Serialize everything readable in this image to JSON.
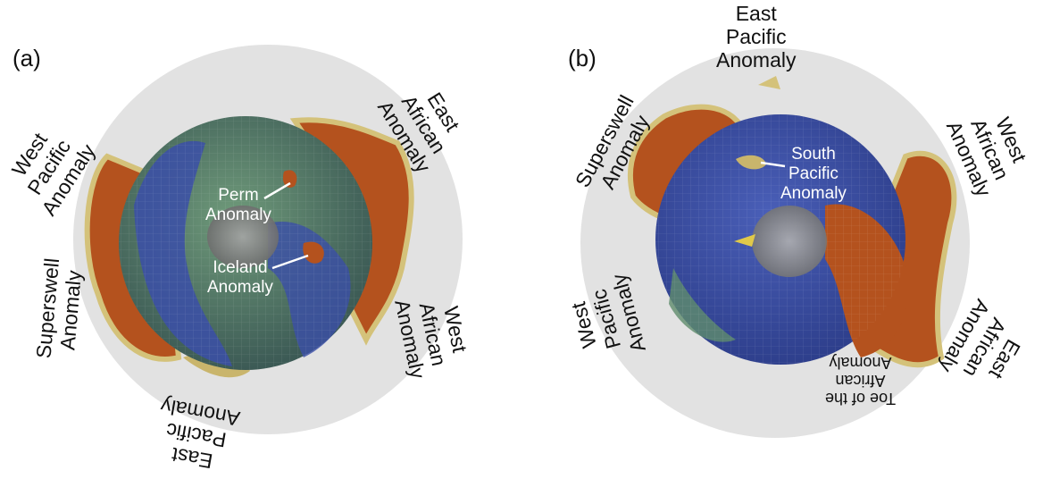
{
  "panels": [
    {
      "tag": "(a)",
      "outer_labels": [
        {
          "lines": [
            "East",
            "African",
            "Anomaly"
          ]
        },
        {
          "lines": [
            "West",
            "Pacific",
            "Anomaly"
          ]
        },
        {
          "lines": [
            "Superswell",
            "Anomaly"
          ]
        },
        {
          "lines": [
            "West",
            "African",
            "Anomaly"
          ]
        },
        {
          "lines": [
            "East",
            "Pacific",
            "Anomaly"
          ]
        }
      ],
      "inner_labels": [
        {
          "lines": [
            "Perm",
            "Anomaly"
          ]
        },
        {
          "lines": [
            "Iceland",
            "Anomaly"
          ]
        }
      ]
    },
    {
      "tag": "(b)",
      "outer_labels": [
        {
          "lines": [
            "East",
            "Pacific",
            "Anomaly"
          ]
        },
        {
          "lines": [
            "Superswell",
            "Anomaly"
          ]
        },
        {
          "lines": [
            "West",
            "African",
            "Anomaly"
          ]
        },
        {
          "lines": [
            "West",
            "Pacific",
            "Anomaly"
          ]
        },
        {
          "lines": [
            "East",
            "African",
            "Anomaly"
          ]
        },
        {
          "lines": [
            "Toe of the",
            "African",
            "Anomaly"
          ]
        }
      ],
      "inner_labels": [
        {
          "lines": [
            "South",
            "Pacific",
            "Anomaly"
          ]
        }
      ]
    }
  ],
  "colors": {
    "mantle_shell": "#e2e2e2",
    "ocean": "#3b4fa8",
    "continent": "#5f8c6d",
    "core": "#8a8a8a",
    "anomaly": "#b4521e",
    "anomaly_edge": "#d4c27a"
  }
}
